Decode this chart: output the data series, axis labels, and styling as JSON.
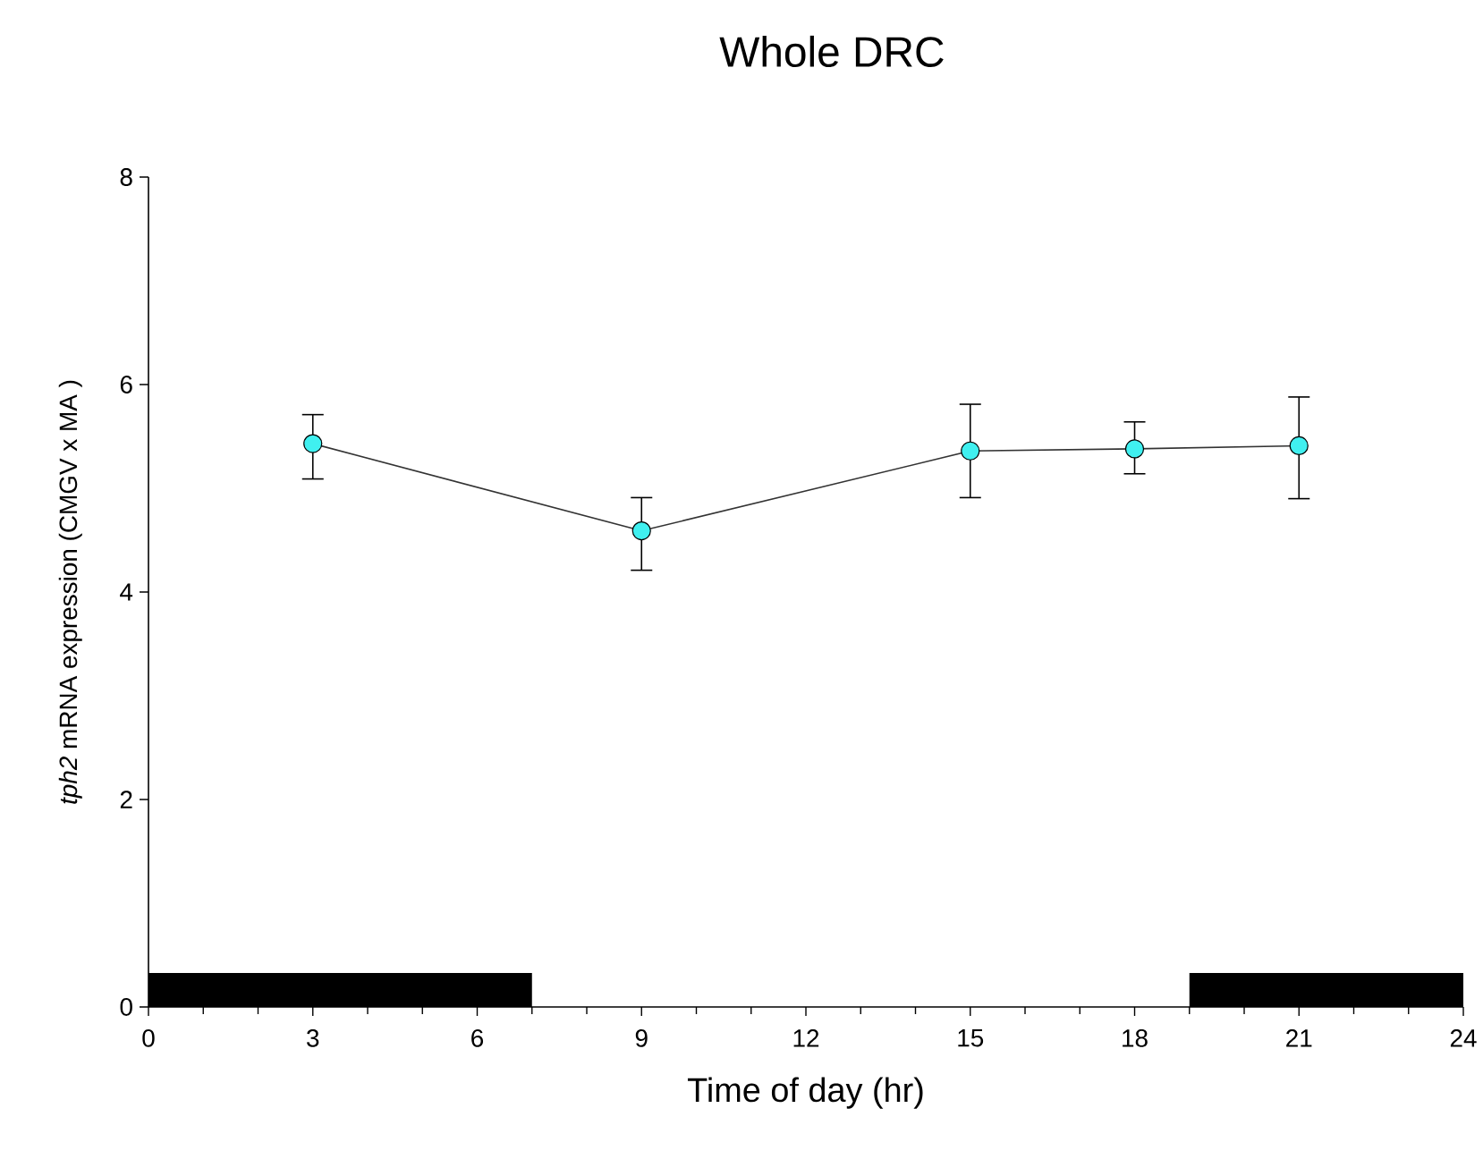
{
  "chart_data": {
    "type": "line",
    "title": "Whole DRC",
    "xlabel": "Time of day (hr)",
    "ylabel": "*tph2* mRNA expression (CMGV x MA )",
    "x": [
      3,
      9,
      15,
      18,
      21
    ],
    "series": [
      {
        "color": "#40f0f0",
        "values": [
          5.43,
          4.59,
          5.36,
          5.38,
          5.41
        ],
        "errors": [
          [
            5.09,
            5.71
          ],
          [
            4.21,
            4.91
          ],
          [
            4.91,
            5.81
          ],
          [
            5.14,
            5.64
          ],
          [
            4.9,
            5.88
          ]
        ]
      }
    ],
    "xlim": [
      0,
      24
    ],
    "xticks": [
      0,
      3,
      6,
      9,
      12,
      15,
      18,
      21,
      24
    ],
    "ylim": [
      0,
      8
    ],
    "yticks": [
      0,
      2,
      4,
      6,
      8
    ],
    "bands": [
      {
        "axis": "x",
        "from": 0,
        "to": 7,
        "color": "#000000"
      },
      {
        "axis": "x",
        "from": 19,
        "to": 24,
        "color": "#000000"
      }
    ],
    "grid": false,
    "marker": "circle",
    "line_style": "solid"
  }
}
